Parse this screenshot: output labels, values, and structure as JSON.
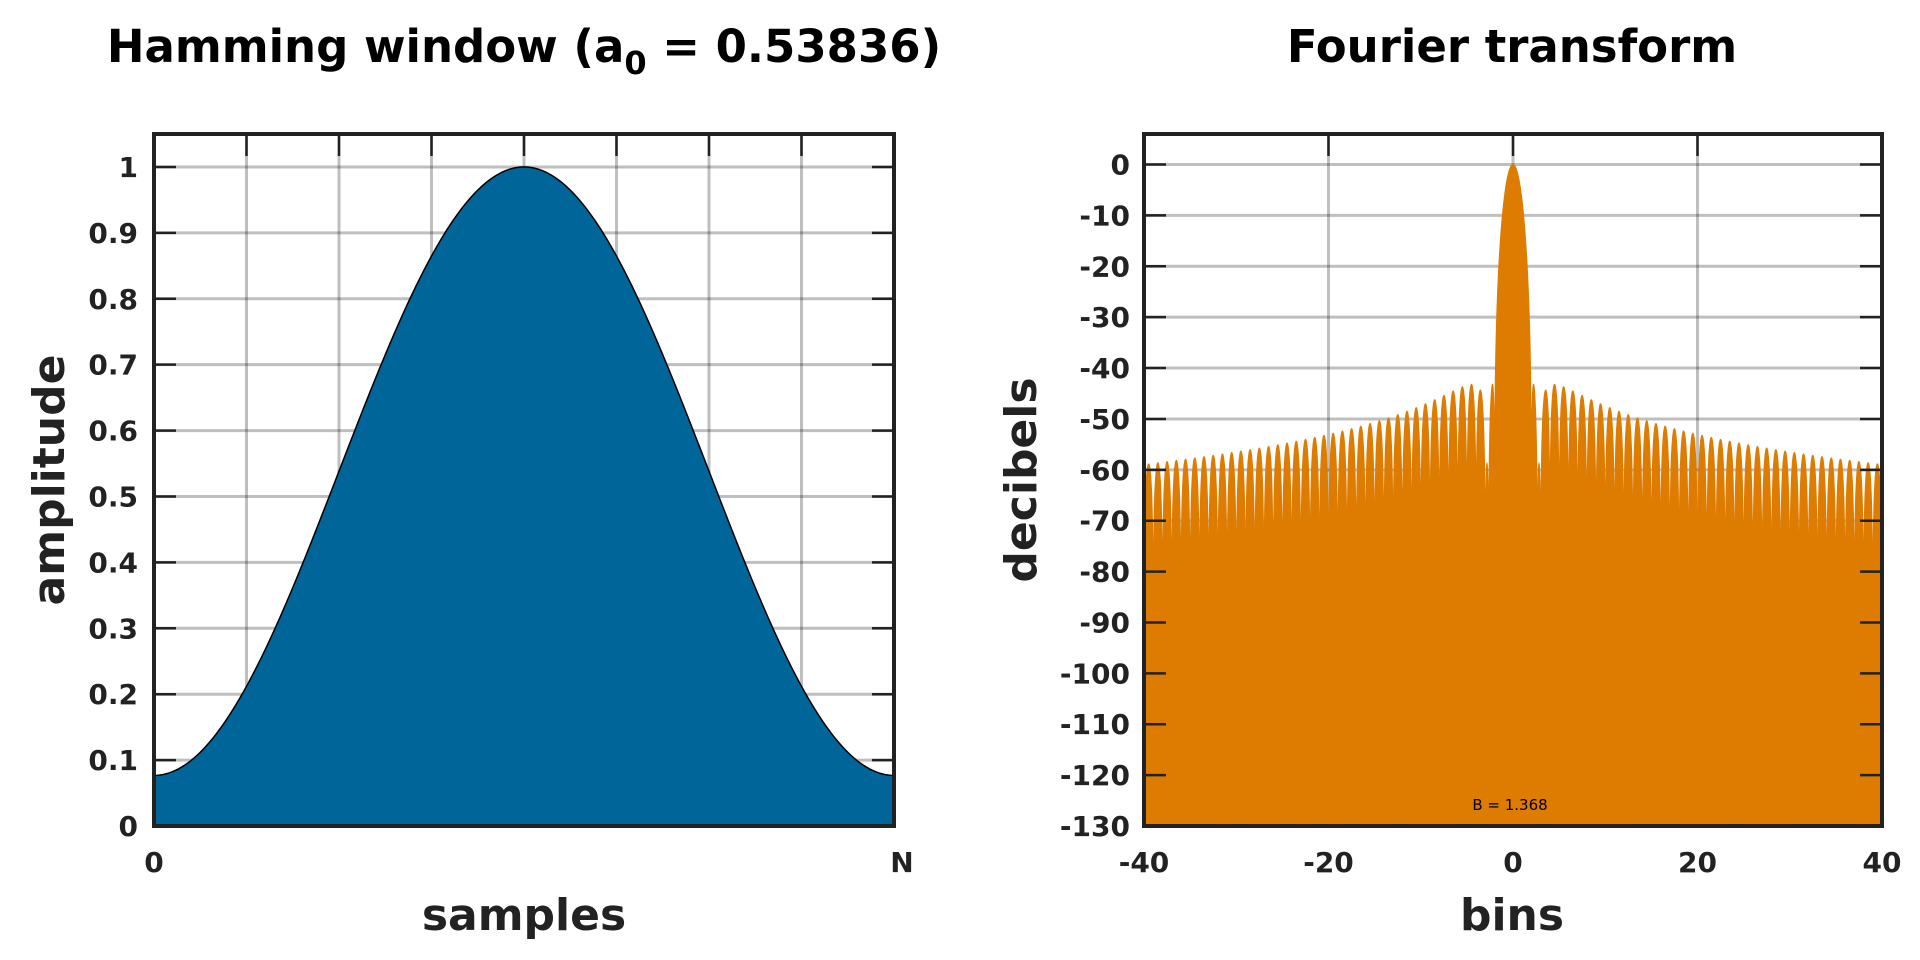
{
  "chart_data": [
    {
      "type": "area",
      "title": "Hamming window (a",
      "title_subscript": "0",
      "title_suffix": " = 0.53836)",
      "xlabel": "samples",
      "ylabel": "amplitude",
      "x_tick_labels": [
        "0",
        "N"
      ],
      "y_ticks": [
        0,
        0.1,
        0.2,
        0.3,
        0.4,
        0.5,
        0.6,
        0.7,
        0.8,
        0.9,
        1
      ],
      "y_tick_labels": [
        "0",
        "0.1",
        "0.2",
        "0.3",
        "0.4",
        "0.5",
        "0.6",
        "0.7",
        "0.8",
        "0.9",
        "1"
      ],
      "xlim": [
        0,
        1
      ],
      "ylim": [
        0,
        1.05
      ],
      "a0": 0.53836,
      "grid": true,
      "fill_color": "#006699",
      "samples_normalized": [
        0,
        0.05,
        0.1,
        0.15,
        0.2,
        0.25,
        0.3,
        0.35,
        0.4,
        0.45,
        0.5,
        0.55,
        0.6,
        0.65,
        0.7,
        0.75,
        0.8,
        0.85,
        0.9,
        0.95,
        1
      ],
      "values": [
        0.077,
        0.099,
        0.166,
        0.27,
        0.398,
        0.538,
        0.679,
        0.807,
        0.911,
        0.977,
        1.0,
        0.977,
        0.911,
        0.807,
        0.679,
        0.538,
        0.398,
        0.27,
        0.166,
        0.099,
        0.077
      ]
    },
    {
      "type": "area",
      "title": "Fourier transform",
      "xlabel": "bins",
      "ylabel": "decibels",
      "x_ticks": [
        -40,
        -20,
        0,
        20,
        40
      ],
      "x_tick_labels": [
        "-40",
        "-20",
        "0",
        "20",
        "40"
      ],
      "y_ticks": [
        0,
        -10,
        -20,
        -30,
        -40,
        -50,
        -60,
        -70,
        -80,
        -90,
        -100,
        -110,
        -120,
        -130
      ],
      "y_tick_labels": [
        "0",
        "-10",
        "-20",
        "-30",
        "-40",
        "-50",
        "-60",
        "-70",
        "-80",
        "-90",
        "-100",
        "-110",
        "-120",
        "-130"
      ],
      "xlim": [
        -40,
        40
      ],
      "ylim": [
        -130,
        6
      ],
      "grid": true,
      "fill_color": "#dd7c00",
      "main_lobe": {
        "peak_db": 0,
        "half_width_bins": 2
      },
      "sidelobe_peaks_db": {
        "at_bin_4_5": -43,
        "at_bin_40": -59
      },
      "annotation": "B = 1.368"
    }
  ]
}
